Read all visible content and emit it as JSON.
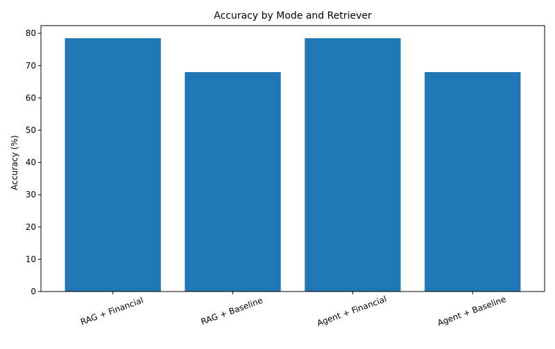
{
  "chart_data": {
    "type": "bar",
    "title": "Accuracy by Mode and Retriever",
    "xlabel": "",
    "ylabel": "Accuracy (%)",
    "categories": [
      "RAG + Financial",
      "RAG + Baseline",
      "Agent + Financial",
      "Agent + Baseline"
    ],
    "values": [
      78.5,
      68.0,
      78.5,
      68.0
    ],
    "ylim": [
      0,
      82.4
    ],
    "yticks": [
      0,
      10,
      20,
      30,
      40,
      50,
      60,
      70,
      80
    ],
    "x_tick_rotation_deg": 20,
    "bar_color": "#1f77b4",
    "grid": false,
    "legend": "none"
  }
}
